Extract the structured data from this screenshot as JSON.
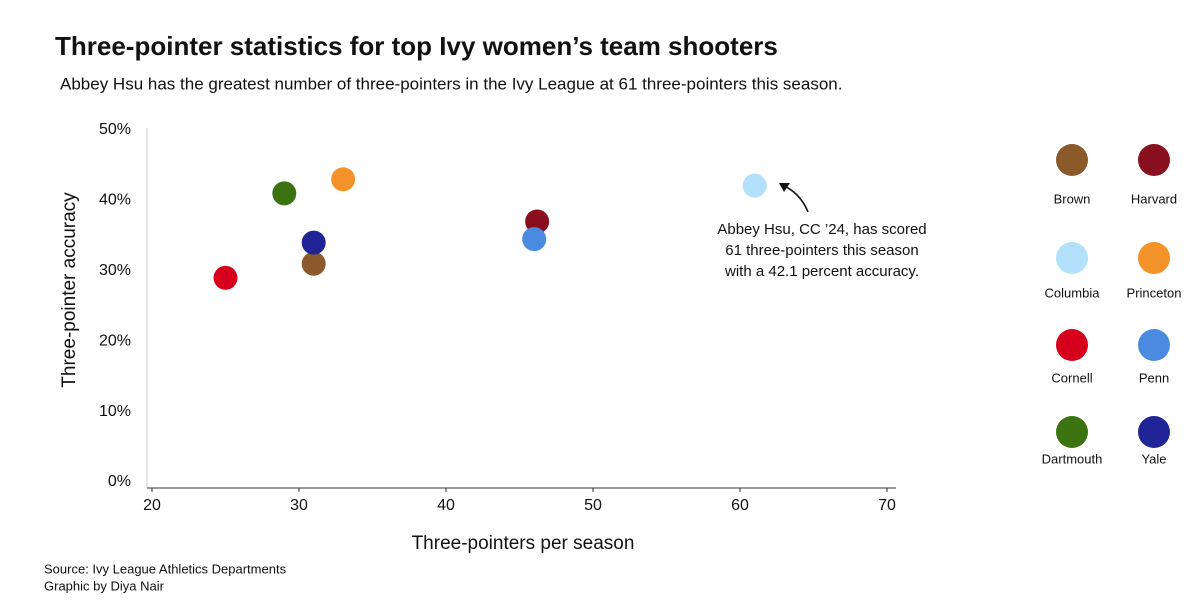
{
  "chart_data": {
    "type": "scatter",
    "title": "Three-pointer statistics for top Ivy women’s team shooters",
    "subtitle": "Abbey Hsu has the greatest number of three-pointers in the Ivy League at 61 three-pointers this season.",
    "x_label": "Three-pointers per season",
    "y_label": "Three-pointer accuracy",
    "xlim": [
      20,
      70
    ],
    "xticks": [
      20,
      30,
      40,
      50,
      60,
      70
    ],
    "ylim": [
      0,
      50
    ],
    "yticks": [
      {
        "value": 0,
        "label": "0%"
      },
      {
        "value": 10,
        "label": "10%"
      },
      {
        "value": 20,
        "label": "20%"
      },
      {
        "value": 30,
        "label": "30%"
      },
      {
        "value": 40,
        "label": "40%"
      },
      {
        "value": 50,
        "label": "50%"
      }
    ],
    "grid": false,
    "legend": "right",
    "series": [
      {
        "name": "Brown",
        "color": "#8b5a2b",
        "x": [
          31
        ],
        "values": [
          31
        ]
      },
      {
        "name": "Harvard",
        "color": "#8a0f1e",
        "x": [
          46.2
        ],
        "values": [
          37
        ]
      },
      {
        "name": "Columbia",
        "color": "#b3e0fb",
        "x": [
          61
        ],
        "values": [
          42.1
        ]
      },
      {
        "name": "Princeton",
        "color": "#f4922a",
        "x": [
          33
        ],
        "values": [
          43
        ]
      },
      {
        "name": "Cornell",
        "color": "#d6001c",
        "x": [
          25
        ],
        "values": [
          29
        ]
      },
      {
        "name": "Penn",
        "color": "#4a8ae0",
        "x": [
          46
        ],
        "values": [
          34.5
        ]
      },
      {
        "name": "Dartmouth",
        "color": "#3a7310",
        "x": [
          29
        ],
        "values": [
          41
        ]
      },
      {
        "name": "Yale",
        "color": "#1f2497",
        "x": [
          31
        ],
        "values": [
          34
        ]
      }
    ],
    "annotation": [
      "Abbey Hsu, CC ’24, has scored",
      "61 three-pointers this season",
      "with a 42.1 percent accuracy."
    ],
    "source": "Source: Ivy League Athletics Departments",
    "credit": "Graphic by Diya Nair"
  }
}
